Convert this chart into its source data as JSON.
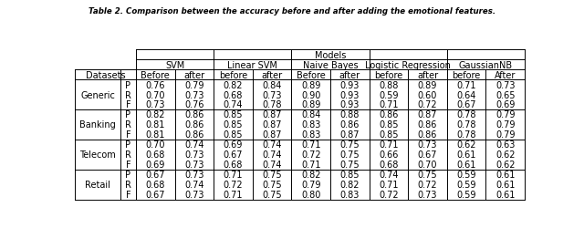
{
  "title": "Table 2. Comparison between the accuracy before and after adding the emotional features.",
  "models": [
    "SVM",
    "Linear SVM",
    "Naive Bayes",
    "Logistic Regression",
    "GaussianNB"
  ],
  "col_headers": [
    "Before",
    "after",
    "before",
    "after",
    "Before",
    "after",
    "before",
    "after",
    "before",
    "After"
  ],
  "datasets": [
    "Generic",
    "Banking",
    "Telecom",
    "Retail"
  ],
  "metrics": [
    "P",
    "R",
    "F"
  ],
  "data": {
    "Generic": {
      "P": [
        0.76,
        0.79,
        0.82,
        0.84,
        0.89,
        0.93,
        0.88,
        0.89,
        0.71,
        0.73
      ],
      "R": [
        0.7,
        0.73,
        0.68,
        0.73,
        0.9,
        0.93,
        0.59,
        0.6,
        0.64,
        0.65
      ],
      "F": [
        0.73,
        0.76,
        0.74,
        0.78,
        0.89,
        0.93,
        0.71,
        0.72,
        0.67,
        0.69
      ]
    },
    "Banking": {
      "P": [
        0.82,
        0.86,
        0.85,
        0.87,
        0.84,
        0.88,
        0.86,
        0.87,
        0.78,
        0.79
      ],
      "R": [
        0.81,
        0.86,
        0.85,
        0.87,
        0.83,
        0.86,
        0.85,
        0.86,
        0.78,
        0.79
      ],
      "F": [
        0.81,
        0.86,
        0.85,
        0.87,
        0.83,
        0.87,
        0.85,
        0.86,
        0.78,
        0.79
      ]
    },
    "Telecom": {
      "P": [
        0.7,
        0.74,
        0.69,
        0.74,
        0.71,
        0.75,
        0.71,
        0.73,
        0.62,
        0.63
      ],
      "R": [
        0.68,
        0.73,
        0.67,
        0.74,
        0.72,
        0.75,
        0.66,
        0.67,
        0.61,
        0.62
      ],
      "F": [
        0.69,
        0.73,
        0.68,
        0.74,
        0.71,
        0.75,
        0.68,
        0.7,
        0.61,
        0.62
      ]
    },
    "Retail": {
      "P": [
        0.67,
        0.73,
        0.71,
        0.75,
        0.82,
        0.85,
        0.74,
        0.75,
        0.59,
        0.61
      ],
      "R": [
        0.68,
        0.74,
        0.72,
        0.75,
        0.79,
        0.82,
        0.71,
        0.72,
        0.59,
        0.61
      ],
      "F": [
        0.67,
        0.73,
        0.71,
        0.75,
        0.8,
        0.83,
        0.72,
        0.73,
        0.59,
        0.61
      ]
    }
  },
  "bg_color": "#ffffff",
  "line_color": "#000000",
  "font_size": 7.0
}
